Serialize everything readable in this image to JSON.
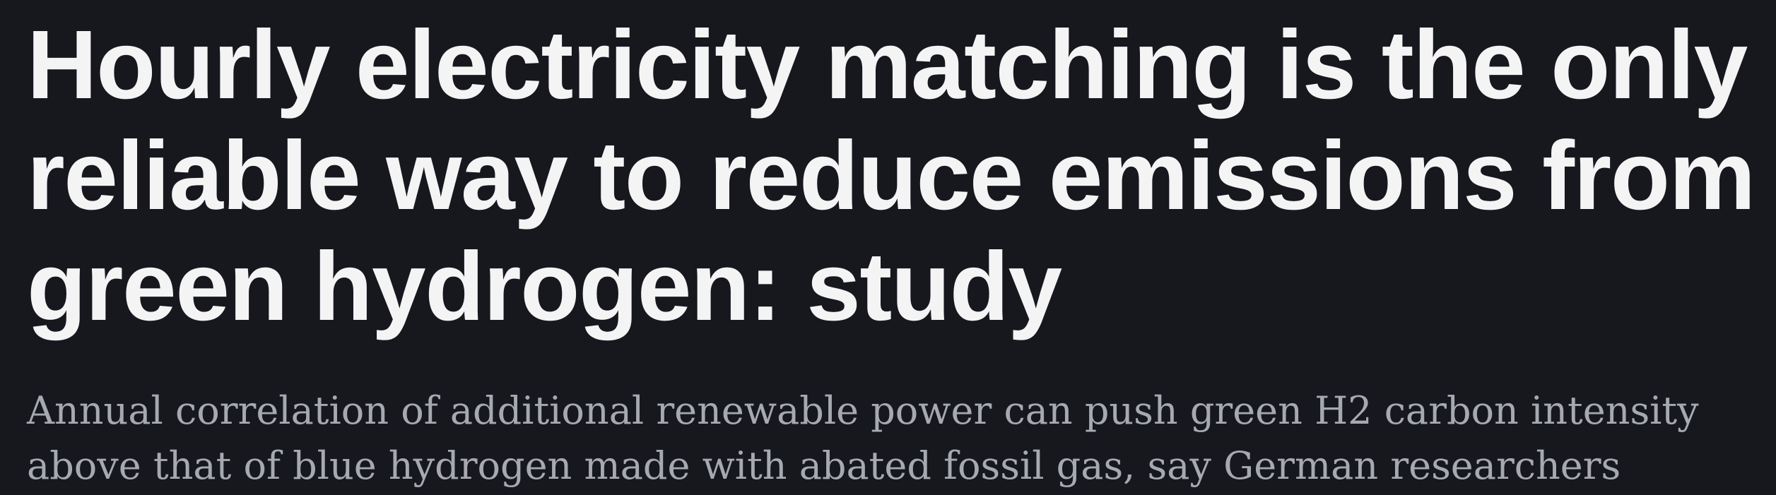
{
  "article": {
    "headline_lines": [
      "Hourly electricity matching is the only",
      "reliable way to reduce emissions from",
      "green hydrogen: study"
    ],
    "subheadline_lines": [
      "Annual correlation of additional renewable power can push green H2 carbon intensity",
      "above that of blue hydrogen made with abated fossil gas, say German researchers"
    ]
  },
  "colors": {
    "background": "#16181e",
    "headline": "#f4f4f5",
    "subheadline": "#a6a9b0"
  }
}
